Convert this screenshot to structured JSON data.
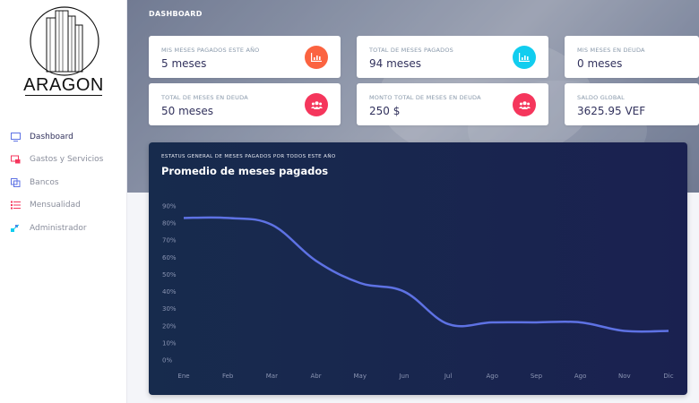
{
  "brand": {
    "name": "ARAGON"
  },
  "sidebar": {
    "items": [
      {
        "label": "Dashboard",
        "icon": "monitor-icon",
        "color": "#5e72e4",
        "active": true
      },
      {
        "label": "Gastos y Servicios",
        "icon": "wallet-icon",
        "color": "#f5365c",
        "active": false
      },
      {
        "label": "Bancos",
        "icon": "bank-icon",
        "color": "#5e72e4",
        "active": false
      },
      {
        "label": "Mensualidad",
        "icon": "list-icon",
        "color": "#f5365c",
        "active": false
      },
      {
        "label": "Administrador",
        "icon": "admin-icon",
        "color": "#11cdef",
        "active": false
      }
    ]
  },
  "header": {
    "title": "DASHBOARD"
  },
  "cards": [
    {
      "label": "MIS MESES PAGADOS ESTE AÑO",
      "value": "5 meses",
      "icon": "chart-bar-icon",
      "color": "#fb6340"
    },
    {
      "label": "TOTAL DE MESES PAGADOS",
      "value": "94 meses",
      "icon": "chart-bar-icon",
      "color": "#11cdef"
    },
    {
      "label": "MIS MESES EN DEUDA",
      "value": "0 meses",
      "icon": "",
      "color": ""
    },
    {
      "label": "TOTAL DE MESES EN DEUDA",
      "value": "50 meses",
      "icon": "users-icon",
      "color": "#f5365c"
    },
    {
      "label": "MONTO TOTAL DE MESES EN DEUDA",
      "value": "250 $",
      "icon": "users-icon",
      "color": "#f5365c"
    },
    {
      "label": "SALDO GLOBAL",
      "value": "3625.95 VEF",
      "icon": "",
      "color": ""
    }
  ],
  "chart_data": {
    "type": "line",
    "subtitle": "ESTATUS GENERAL DE MESES PAGADOS POR TODOS ESTE AÑO",
    "title": "Promedio de meses pagados",
    "categories": [
      "Ene",
      "Feb",
      "Mar",
      "Abr",
      "May",
      "Jun",
      "Jul",
      "Ago",
      "Sep",
      "Ago",
      "Nov",
      "Dic"
    ],
    "yticks": [
      "0%",
      "10%",
      "20%",
      "30%",
      "40%",
      "50%",
      "60%",
      "70%",
      "80%",
      "90%"
    ],
    "ylim": [
      0,
      90
    ],
    "series": [
      {
        "values": [
          83,
          83,
          79,
          58,
          45,
          40,
          21,
          22,
          22,
          22,
          17,
          17
        ],
        "color": "#5e72e4"
      }
    ],
    "grid": false,
    "xlabel": "",
    "ylabel": ""
  }
}
